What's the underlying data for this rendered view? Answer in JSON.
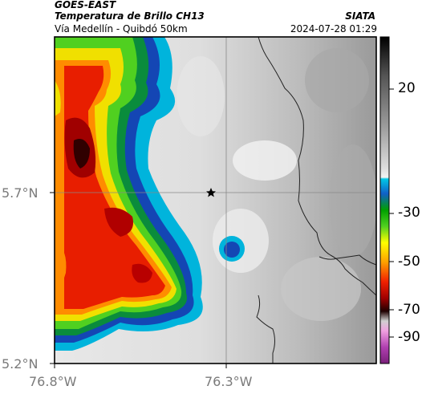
{
  "header": {
    "satellite": "GOES-EAST",
    "product": "Temperatura de Brillo CH13",
    "route": "Vía Medellín - Quibdó 50km",
    "organization": "SIATA",
    "datetime": "2024-07-28 01:29"
  },
  "axes": {
    "y_ticks": [
      "5.7°N",
      "5.2°N"
    ],
    "x_ticks": [
      "76.8°W",
      "76.3°W"
    ]
  },
  "colorbar": {
    "ticks": [
      "20",
      "-30",
      "-50",
      "-70",
      "-90"
    ]
  },
  "colors": {
    "frame": "#000000",
    "tick_label_gray": "#7a7a7a",
    "gridline": "#888888",
    "border_line": "#222222"
  },
  "marker": {
    "icon": "star-icon"
  }
}
